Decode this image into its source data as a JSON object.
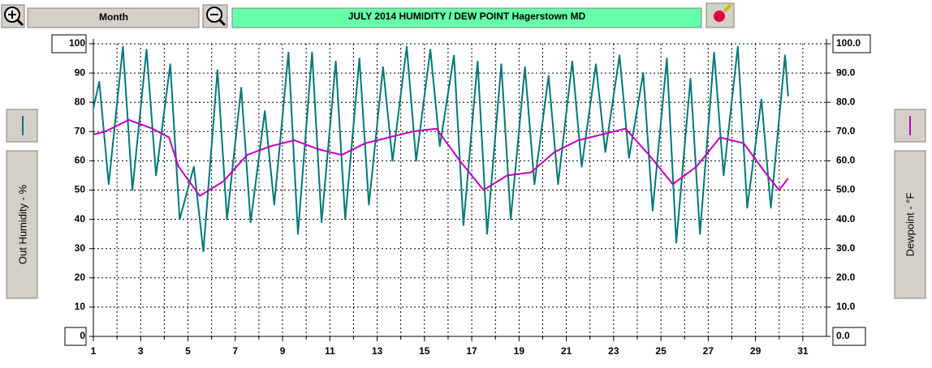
{
  "toolbar": {
    "period": "Month"
  },
  "chart_data": {
    "type": "line",
    "title": "JULY  2014  HUMIDITY / DEW POINT  Hagerstown MD",
    "xlim": [
      1,
      32
    ],
    "xticks": [
      1,
      3,
      5,
      7,
      9,
      11,
      13,
      15,
      17,
      19,
      21,
      23,
      25,
      27,
      29,
      31
    ],
    "xminorticks": [
      2,
      4,
      6,
      8,
      10,
      12,
      14,
      16,
      18,
      20,
      22,
      24,
      26,
      28,
      30
    ],
    "ylim": [
      0,
      100
    ],
    "yticks": [
      0,
      10,
      20,
      30,
      40,
      50,
      60,
      70,
      80,
      90,
      100
    ],
    "y2lim": [
      0,
      100
    ],
    "y2ticks": [
      {
        "value": 0,
        "label": "0.0"
      },
      {
        "value": 10,
        "label": "10.0"
      },
      {
        "value": 20,
        "label": "20.0"
      },
      {
        "value": 30,
        "label": "30.0"
      },
      {
        "value": 40,
        "label": "40.0"
      },
      {
        "value": 50,
        "label": "50.0"
      },
      {
        "value": 60,
        "label": "60.0"
      },
      {
        "value": 70,
        "label": "70.0"
      },
      {
        "value": 80,
        "label": "80.0"
      },
      {
        "value": 90,
        "label": "90.0"
      },
      {
        "value": 100,
        "label": "100.0"
      }
    ],
    "grid": true,
    "series": [
      {
        "name": "Out Humidity - %",
        "color": "#007878",
        "x": [
          1.0,
          1.25,
          1.65,
          2.25,
          2.65,
          3.25,
          3.65,
          4.25,
          4.65,
          5.25,
          5.65,
          6.25,
          6.65,
          7.25,
          7.65,
          8.25,
          8.65,
          9.25,
          9.65,
          10.25,
          10.65,
          11.25,
          11.65,
          12.25,
          12.65,
          13.25,
          13.65,
          14.25,
          14.65,
          15.25,
          15.65,
          16.25,
          16.65,
          17.25,
          17.65,
          18.25,
          18.65,
          19.25,
          19.65,
          20.25,
          20.65,
          21.25,
          21.65,
          22.25,
          22.65,
          23.25,
          23.65,
          24.25,
          24.65,
          25.25,
          25.65,
          26.25,
          26.65,
          27.25,
          27.65,
          28.25,
          28.65,
          29.25,
          29.65,
          30.25,
          30.38
        ],
        "values": [
          78,
          87,
          52,
          99,
          50,
          98,
          55,
          93,
          40,
          58,
          29,
          91,
          40,
          85,
          39,
          77,
          45,
          97,
          35,
          97,
          39,
          94,
          40,
          95,
          45,
          92,
          60,
          99,
          60,
          98,
          65,
          96,
          38,
          94,
          35,
          93,
          40,
          92,
          52,
          89,
          52,
          94,
          58,
          93,
          63,
          96,
          61,
          90,
          43,
          95,
          32,
          88,
          35,
          97,
          55,
          99,
          44,
          81,
          44,
          96,
          82
        ]
      },
      {
        "name": "Dewpoint - °F",
        "color": "#c000c0",
        "axis": "y2",
        "x": [
          1.0,
          1.5,
          2.5,
          3.5,
          4.2,
          4.6,
          5.5,
          6.5,
          7.5,
          8.5,
          9.5,
          10.5,
          11.5,
          12.5,
          13.5,
          14.5,
          15.5,
          16.5,
          17.5,
          18.5,
          19.5,
          20.5,
          21.5,
          22.5,
          23.5,
          24.5,
          25.5,
          26.5,
          27.5,
          28.5,
          29.5,
          30.0,
          30.38
        ],
        "values": [
          69,
          70,
          74,
          71,
          68,
          58,
          48,
          53,
          62,
          65,
          67,
          64,
          62,
          66,
          68,
          70,
          71,
          60,
          50,
          55,
          56,
          63,
          67,
          69,
          71,
          62,
          52,
          58,
          68,
          66,
          55,
          50,
          54
        ]
      }
    ]
  }
}
